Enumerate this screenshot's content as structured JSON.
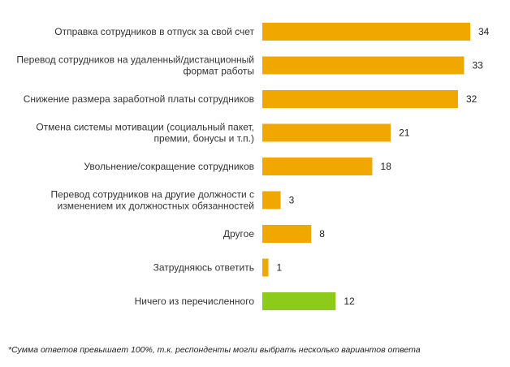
{
  "chart_data": {
    "type": "bar",
    "orientation": "horizontal",
    "categories": [
      [
        "Отправка сотрудников в отпуск за свой счет"
      ],
      [
        "Перевод сотрудников на удаленный/дистанционный",
        "формат работы"
      ],
      [
        "Снижение размера заработной платы сотрудников"
      ],
      [
        "Отмена системы мотивации (социальный пакет,",
        "премии, бонусы и т.п.)"
      ],
      [
        "Увольнение/сокращение сотрудников"
      ],
      [
        "Перевод сотрудников на другие должности с",
        "изменением их должностных обязанностей"
      ],
      [
        "Другое"
      ],
      [
        "Затрудняюсь ответить"
      ],
      [
        "Ничего из перечисленного"
      ]
    ],
    "values": [
      34,
      33,
      32,
      21,
      18,
      3,
      8,
      1,
      12
    ],
    "colors": [
      "#F0A800",
      "#F0A800",
      "#F0A800",
      "#F0A800",
      "#F0A800",
      "#F0A800",
      "#F0A800",
      "#F0A800",
      "#8CCB1A"
    ],
    "xlim": [
      0,
      34
    ],
    "grid": false,
    "title": "",
    "xlabel": "",
    "ylabel": ""
  },
  "footnote": "*Сумма ответов превышает 100%, т.к. респонденты могли выбрать несколько вариантов ответа"
}
